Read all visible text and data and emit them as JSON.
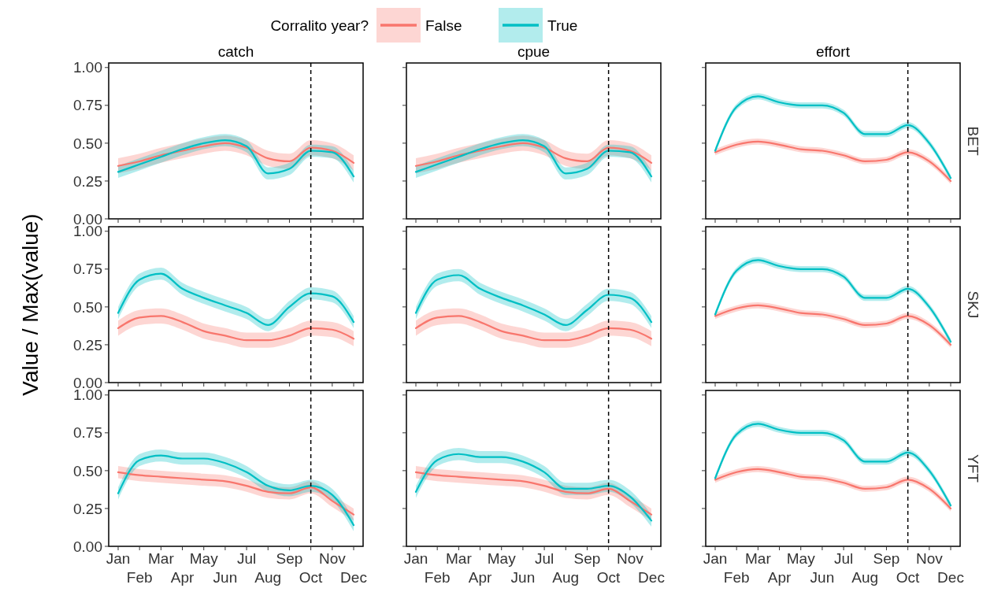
{
  "chart_data": [
    {
      "type": "line",
      "title": "catch",
      "legend_title": "Corralito year?",
      "legend": "top",
      "tick_labels": "y",
      "categories": [
        "Jan",
        "Feb",
        "Mar",
        "Apr",
        "May",
        "Jun",
        "Jul",
        "Aug",
        "Sep",
        "Oct",
        "Nov",
        "Dec"
      ],
      "ylim": [
        0,
        1.03
      ],
      "yticks": [
        {
          "value": 0,
          "label": "0.00"
        },
        {
          "value": 0.25,
          "label": "0.25"
        },
        {
          "value": 0.5,
          "label": "0.50"
        },
        {
          "value": 0.75,
          "label": "0.75"
        },
        {
          "value": 1,
          "label": "1.00"
        }
      ],
      "ref_lines": [
        {
          "axis": "x",
          "value": "Oct",
          "line_style": "dashed",
          "color": "#000000"
        }
      ],
      "series": [
        {
          "name": "False",
          "color": "#f8766d",
          "values": [
            0.35,
            0.38,
            0.42,
            0.45,
            0.48,
            0.5,
            0.47,
            0.4,
            0.38,
            0.47,
            0.45,
            0.37
          ],
          "lower": [
            0.3,
            0.33,
            0.37,
            0.4,
            0.43,
            0.45,
            0.42,
            0.35,
            0.33,
            0.42,
            0.4,
            0.32
          ],
          "upper": [
            0.4,
            0.43,
            0.47,
            0.5,
            0.53,
            0.55,
            0.52,
            0.45,
            0.43,
            0.52,
            0.5,
            0.42
          ]
        },
        {
          "name": "True",
          "color": "#00bfc4",
          "values": [
            0.31,
            0.36,
            0.41,
            0.46,
            0.5,
            0.52,
            0.48,
            0.3,
            0.33,
            0.45,
            0.44,
            0.28
          ],
          "lower": [
            0.27,
            0.32,
            0.37,
            0.42,
            0.46,
            0.48,
            0.44,
            0.26,
            0.29,
            0.41,
            0.4,
            0.24
          ],
          "upper": [
            0.35,
            0.4,
            0.45,
            0.5,
            0.54,
            0.56,
            0.52,
            0.34,
            0.37,
            0.49,
            0.48,
            0.32
          ]
        }
      ]
    },
    {
      "type": "line",
      "title": "cpue",
      "tick_labels": false,
      "categories": [
        "Jan",
        "Feb",
        "Mar",
        "Apr",
        "May",
        "Jun",
        "Jul",
        "Aug",
        "Sep",
        "Oct",
        "Nov",
        "Dec"
      ],
      "ylim": [
        0,
        1.03
      ],
      "ref_lines": [
        {
          "axis": "x",
          "value": "Oct",
          "line_style": "dashed",
          "color": "#000000"
        }
      ],
      "series": [
        {
          "color": "#f8766d",
          "values": [
            0.35,
            0.38,
            0.42,
            0.45,
            0.48,
            0.5,
            0.47,
            0.4,
            0.38,
            0.47,
            0.45,
            0.37
          ],
          "lower": [
            0.3,
            0.33,
            0.37,
            0.4,
            0.43,
            0.45,
            0.42,
            0.35,
            0.33,
            0.42,
            0.4,
            0.32
          ],
          "upper": [
            0.4,
            0.43,
            0.47,
            0.5,
            0.53,
            0.55,
            0.52,
            0.45,
            0.43,
            0.52,
            0.5,
            0.42
          ]
        },
        {
          "color": "#00bfc4",
          "values": [
            0.31,
            0.36,
            0.41,
            0.46,
            0.5,
            0.52,
            0.48,
            0.3,
            0.33,
            0.45,
            0.44,
            0.28
          ],
          "lower": [
            0.27,
            0.32,
            0.37,
            0.42,
            0.46,
            0.48,
            0.44,
            0.26,
            0.29,
            0.41,
            0.4,
            0.24
          ],
          "upper": [
            0.35,
            0.4,
            0.45,
            0.5,
            0.54,
            0.56,
            0.52,
            0.34,
            0.37,
            0.49,
            0.48,
            0.32
          ]
        }
      ]
    },
    {
      "type": "line",
      "title": "effort",
      "annotations": [
        "BET"
      ],
      "tick_labels": false,
      "categories": [
        "Jan",
        "Feb",
        "Mar",
        "Apr",
        "May",
        "Jun",
        "Jul",
        "Aug",
        "Sep",
        "Oct",
        "Nov",
        "Dec"
      ],
      "ylim": [
        0,
        1.03
      ],
      "ref_lines": [
        {
          "axis": "x",
          "value": "Oct",
          "line_style": "dashed",
          "color": "#000000"
        }
      ],
      "series": [
        {
          "color": "#f8766d",
          "values": [
            0.44,
            0.49,
            0.51,
            0.49,
            0.46,
            0.45,
            0.42,
            0.38,
            0.39,
            0.44,
            0.38,
            0.25
          ],
          "lower": [
            0.42,
            0.47,
            0.49,
            0.47,
            0.44,
            0.43,
            0.4,
            0.36,
            0.37,
            0.42,
            0.36,
            0.23
          ],
          "upper": [
            0.46,
            0.51,
            0.53,
            0.51,
            0.48,
            0.47,
            0.44,
            0.4,
            0.41,
            0.46,
            0.4,
            0.27
          ]
        },
        {
          "color": "#00bfc4",
          "values": [
            0.45,
            0.74,
            0.81,
            0.77,
            0.75,
            0.75,
            0.7,
            0.56,
            0.56,
            0.62,
            0.5,
            0.27
          ],
          "lower": [
            0.43,
            0.72,
            0.79,
            0.75,
            0.73,
            0.73,
            0.68,
            0.54,
            0.54,
            0.6,
            0.48,
            0.25
          ],
          "upper": [
            0.47,
            0.76,
            0.83,
            0.79,
            0.77,
            0.77,
            0.72,
            0.58,
            0.58,
            0.64,
            0.52,
            0.29
          ]
        }
      ]
    },
    {
      "type": "line",
      "ylabel": "Value / Max(value)",
      "tick_labels": "y",
      "categories": [
        "Jan",
        "Feb",
        "Mar",
        "Apr",
        "May",
        "Jun",
        "Jul",
        "Aug",
        "Sep",
        "Oct",
        "Nov",
        "Dec"
      ],
      "ylim": [
        0,
        1.03
      ],
      "yticks": [
        {
          "value": 0,
          "label": "0.00"
        },
        {
          "value": 0.25,
          "label": "0.25"
        },
        {
          "value": 0.5,
          "label": "0.50"
        },
        {
          "value": 0.75,
          "label": "0.75"
        },
        {
          "value": 1,
          "label": "1.00"
        }
      ],
      "ref_lines": [
        {
          "axis": "x",
          "value": "Oct",
          "line_style": "dashed",
          "color": "#000000"
        }
      ],
      "series": [
        {
          "color": "#f8766d",
          "values": [
            0.36,
            0.43,
            0.44,
            0.4,
            0.34,
            0.31,
            0.28,
            0.28,
            0.31,
            0.36,
            0.35,
            0.29
          ],
          "lower": [
            0.31,
            0.38,
            0.39,
            0.35,
            0.29,
            0.26,
            0.23,
            0.23,
            0.26,
            0.31,
            0.3,
            0.24
          ],
          "upper": [
            0.41,
            0.48,
            0.49,
            0.45,
            0.39,
            0.36,
            0.33,
            0.33,
            0.36,
            0.41,
            0.4,
            0.34
          ]
        },
        {
          "color": "#00bfc4",
          "values": [
            0.46,
            0.68,
            0.72,
            0.62,
            0.56,
            0.51,
            0.46,
            0.38,
            0.5,
            0.59,
            0.57,
            0.4
          ],
          "lower": [
            0.42,
            0.64,
            0.68,
            0.58,
            0.52,
            0.47,
            0.42,
            0.34,
            0.46,
            0.55,
            0.53,
            0.36
          ],
          "upper": [
            0.5,
            0.72,
            0.76,
            0.66,
            0.6,
            0.55,
            0.5,
            0.42,
            0.54,
            0.63,
            0.61,
            0.44
          ]
        }
      ]
    },
    {
      "type": "line",
      "tick_labels": false,
      "categories": [
        "Jan",
        "Feb",
        "Mar",
        "Apr",
        "May",
        "Jun",
        "Jul",
        "Aug",
        "Sep",
        "Oct",
        "Nov",
        "Dec"
      ],
      "ylim": [
        0,
        1.03
      ],
      "ref_lines": [
        {
          "axis": "x",
          "value": "Oct",
          "line_style": "dashed",
          "color": "#000000"
        }
      ],
      "series": [
        {
          "color": "#f8766d",
          "values": [
            0.36,
            0.43,
            0.44,
            0.4,
            0.34,
            0.31,
            0.28,
            0.28,
            0.31,
            0.36,
            0.35,
            0.29
          ],
          "lower": [
            0.31,
            0.38,
            0.39,
            0.35,
            0.29,
            0.26,
            0.23,
            0.23,
            0.26,
            0.31,
            0.3,
            0.24
          ],
          "upper": [
            0.41,
            0.48,
            0.49,
            0.45,
            0.39,
            0.36,
            0.33,
            0.33,
            0.36,
            0.41,
            0.4,
            0.34
          ]
        },
        {
          "color": "#00bfc4",
          "values": [
            0.46,
            0.68,
            0.71,
            0.62,
            0.56,
            0.51,
            0.45,
            0.38,
            0.48,
            0.58,
            0.56,
            0.4
          ],
          "lower": [
            0.42,
            0.64,
            0.67,
            0.58,
            0.52,
            0.47,
            0.41,
            0.34,
            0.44,
            0.54,
            0.52,
            0.36
          ],
          "upper": [
            0.5,
            0.72,
            0.75,
            0.66,
            0.6,
            0.55,
            0.49,
            0.42,
            0.52,
            0.62,
            0.6,
            0.44
          ]
        }
      ]
    },
    {
      "type": "line",
      "annotations": [
        "SKJ"
      ],
      "tick_labels": false,
      "categories": [
        "Jan",
        "Feb",
        "Mar",
        "Apr",
        "May",
        "Jun",
        "Jul",
        "Aug",
        "Sep",
        "Oct",
        "Nov",
        "Dec"
      ],
      "ylim": [
        0,
        1.03
      ],
      "ref_lines": [
        {
          "axis": "x",
          "value": "Oct",
          "line_style": "dashed",
          "color": "#000000"
        }
      ],
      "series": [
        {
          "color": "#f8766d",
          "values": [
            0.44,
            0.49,
            0.51,
            0.49,
            0.46,
            0.45,
            0.42,
            0.38,
            0.39,
            0.44,
            0.38,
            0.25
          ],
          "lower": [
            0.42,
            0.47,
            0.49,
            0.47,
            0.44,
            0.43,
            0.4,
            0.36,
            0.37,
            0.42,
            0.36,
            0.23
          ],
          "upper": [
            0.46,
            0.51,
            0.53,
            0.51,
            0.48,
            0.47,
            0.44,
            0.4,
            0.41,
            0.46,
            0.4,
            0.27
          ]
        },
        {
          "color": "#00bfc4",
          "values": [
            0.45,
            0.74,
            0.81,
            0.77,
            0.75,
            0.75,
            0.7,
            0.56,
            0.56,
            0.62,
            0.5,
            0.27
          ],
          "lower": [
            0.43,
            0.72,
            0.79,
            0.75,
            0.73,
            0.73,
            0.68,
            0.54,
            0.54,
            0.6,
            0.48,
            0.25
          ],
          "upper": [
            0.47,
            0.76,
            0.83,
            0.79,
            0.77,
            0.77,
            0.72,
            0.58,
            0.58,
            0.64,
            0.52,
            0.29
          ]
        }
      ]
    },
    {
      "type": "line",
      "categories": [
        "Jan",
        "Feb",
        "Mar",
        "Apr",
        "May",
        "Jun",
        "Jul",
        "Aug",
        "Sep",
        "Oct",
        "Nov",
        "Dec"
      ],
      "ylim": [
        0,
        1.03
      ],
      "yticks": [
        {
          "value": 0,
          "label": "0.00"
        },
        {
          "value": 0.25,
          "label": "0.25"
        },
        {
          "value": 0.5,
          "label": "0.50"
        },
        {
          "value": 0.75,
          "label": "0.75"
        },
        {
          "value": 1,
          "label": "1.00"
        }
      ],
      "ref_lines": [
        {
          "axis": "x",
          "value": "Oct",
          "line_style": "dashed",
          "color": "#000000"
        }
      ],
      "series": [
        {
          "color": "#f8766d",
          "values": [
            0.49,
            0.47,
            0.46,
            0.45,
            0.44,
            0.43,
            0.4,
            0.36,
            0.35,
            0.39,
            0.3,
            0.21
          ],
          "lower": [
            0.45,
            0.43,
            0.42,
            0.41,
            0.4,
            0.39,
            0.36,
            0.32,
            0.31,
            0.35,
            0.26,
            0.17
          ],
          "upper": [
            0.53,
            0.51,
            0.5,
            0.49,
            0.48,
            0.47,
            0.44,
            0.4,
            0.39,
            0.43,
            0.34,
            0.25
          ]
        },
        {
          "color": "#00bfc4",
          "values": [
            0.35,
            0.57,
            0.6,
            0.58,
            0.58,
            0.55,
            0.49,
            0.4,
            0.37,
            0.4,
            0.34,
            0.14
          ],
          "lower": [
            0.31,
            0.53,
            0.56,
            0.54,
            0.54,
            0.51,
            0.45,
            0.36,
            0.33,
            0.36,
            0.3,
            0.1
          ],
          "upper": [
            0.39,
            0.61,
            0.64,
            0.62,
            0.62,
            0.59,
            0.53,
            0.44,
            0.41,
            0.44,
            0.38,
            0.18
          ]
        }
      ]
    },
    {
      "type": "line",
      "tick_labels": "x",
      "categories": [
        "Jan",
        "Feb",
        "Mar",
        "Apr",
        "May",
        "Jun",
        "Jul",
        "Aug",
        "Sep",
        "Oct",
        "Nov",
        "Dec"
      ],
      "ylim": [
        0,
        1.03
      ],
      "ref_lines": [
        {
          "axis": "x",
          "value": "Oct",
          "line_style": "dashed",
          "color": "#000000"
        }
      ],
      "series": [
        {
          "color": "#f8766d",
          "values": [
            0.49,
            0.47,
            0.46,
            0.45,
            0.44,
            0.43,
            0.4,
            0.36,
            0.35,
            0.38,
            0.3,
            0.21
          ],
          "lower": [
            0.45,
            0.43,
            0.42,
            0.41,
            0.4,
            0.39,
            0.36,
            0.32,
            0.31,
            0.34,
            0.26,
            0.17
          ],
          "upper": [
            0.53,
            0.51,
            0.5,
            0.49,
            0.48,
            0.47,
            0.44,
            0.4,
            0.39,
            0.42,
            0.34,
            0.25
          ]
        },
        {
          "color": "#00bfc4",
          "values": [
            0.36,
            0.57,
            0.61,
            0.59,
            0.59,
            0.56,
            0.49,
            0.38,
            0.38,
            0.4,
            0.33,
            0.17
          ],
          "lower": [
            0.32,
            0.53,
            0.57,
            0.55,
            0.55,
            0.52,
            0.45,
            0.34,
            0.34,
            0.36,
            0.29,
            0.13
          ],
          "upper": [
            0.4,
            0.61,
            0.65,
            0.63,
            0.63,
            0.6,
            0.53,
            0.42,
            0.42,
            0.44,
            0.37,
            0.21
          ]
        }
      ]
    },
    {
      "type": "line",
      "annotations": [
        "YFT"
      ],
      "tick_labels": "x",
      "categories": [
        "Jan",
        "Feb",
        "Mar",
        "Apr",
        "May",
        "Jun",
        "Jul",
        "Aug",
        "Sep",
        "Oct",
        "Nov",
        "Dec"
      ],
      "ylim": [
        0,
        1.03
      ],
      "ref_lines": [
        {
          "axis": "x",
          "value": "Oct",
          "line_style": "dashed",
          "color": "#000000"
        }
      ],
      "series": [
        {
          "color": "#f8766d",
          "values": [
            0.44,
            0.49,
            0.51,
            0.49,
            0.46,
            0.45,
            0.42,
            0.38,
            0.39,
            0.44,
            0.38,
            0.25
          ],
          "lower": [
            0.42,
            0.47,
            0.49,
            0.47,
            0.44,
            0.43,
            0.4,
            0.36,
            0.37,
            0.42,
            0.36,
            0.23
          ],
          "upper": [
            0.46,
            0.51,
            0.53,
            0.51,
            0.48,
            0.47,
            0.44,
            0.4,
            0.41,
            0.46,
            0.4,
            0.27
          ]
        },
        {
          "color": "#00bfc4",
          "values": [
            0.45,
            0.74,
            0.81,
            0.77,
            0.75,
            0.75,
            0.7,
            0.56,
            0.56,
            0.62,
            0.5,
            0.27
          ],
          "lower": [
            0.43,
            0.72,
            0.79,
            0.75,
            0.73,
            0.73,
            0.68,
            0.54,
            0.54,
            0.6,
            0.48,
            0.25
          ],
          "upper": [
            0.47,
            0.76,
            0.83,
            0.79,
            0.77,
            0.77,
            0.72,
            0.58,
            0.58,
            0.64,
            0.52,
            0.29
          ]
        }
      ]
    }
  ]
}
